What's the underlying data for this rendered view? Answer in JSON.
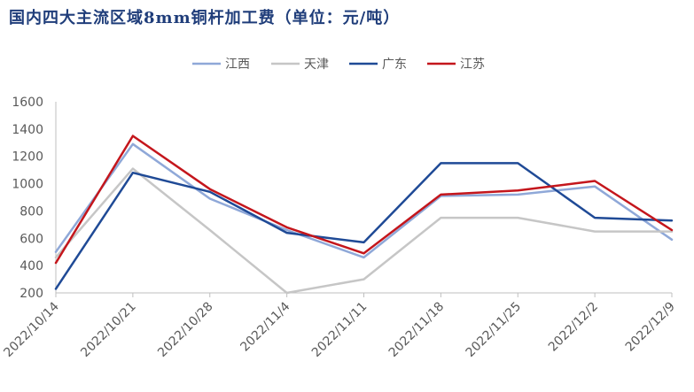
{
  "chart_data": {
    "type": "line",
    "title": "国内四大主流区域8mm铜杆加工费（单位：元/吨）",
    "categories": [
      "2022/10/14",
      "2022/10/21",
      "2022/10/28",
      "2022/11/4",
      "2022/11/11",
      "2022/11/18",
      "2022/11/25",
      "2022/12/2",
      "2022/12/9"
    ],
    "ylim": [
      200,
      1600
    ],
    "yticks": [
      200,
      400,
      600,
      800,
      1000,
      1200,
      1400,
      1600
    ],
    "grid": false,
    "legend_position": "top",
    "series": [
      {
        "name": "江西",
        "color": "#8fa8d8",
        "values": [
          500,
          1290,
          890,
          660,
          460,
          910,
          920,
          980,
          590
        ]
      },
      {
        "name": "天津",
        "color": "#c6c6c6",
        "values": [
          460,
          1110,
          660,
          200,
          300,
          750,
          750,
          650,
          650
        ]
      },
      {
        "name": "广东",
        "color": "#1f4a96",
        "values": [
          230,
          1080,
          940,
          640,
          570,
          1150,
          1150,
          750,
          730
        ]
      },
      {
        "name": "江苏",
        "color": "#c4161c",
        "values": [
          420,
          1350,
          960,
          680,
          490,
          920,
          950,
          1020,
          660
        ]
      }
    ]
  }
}
